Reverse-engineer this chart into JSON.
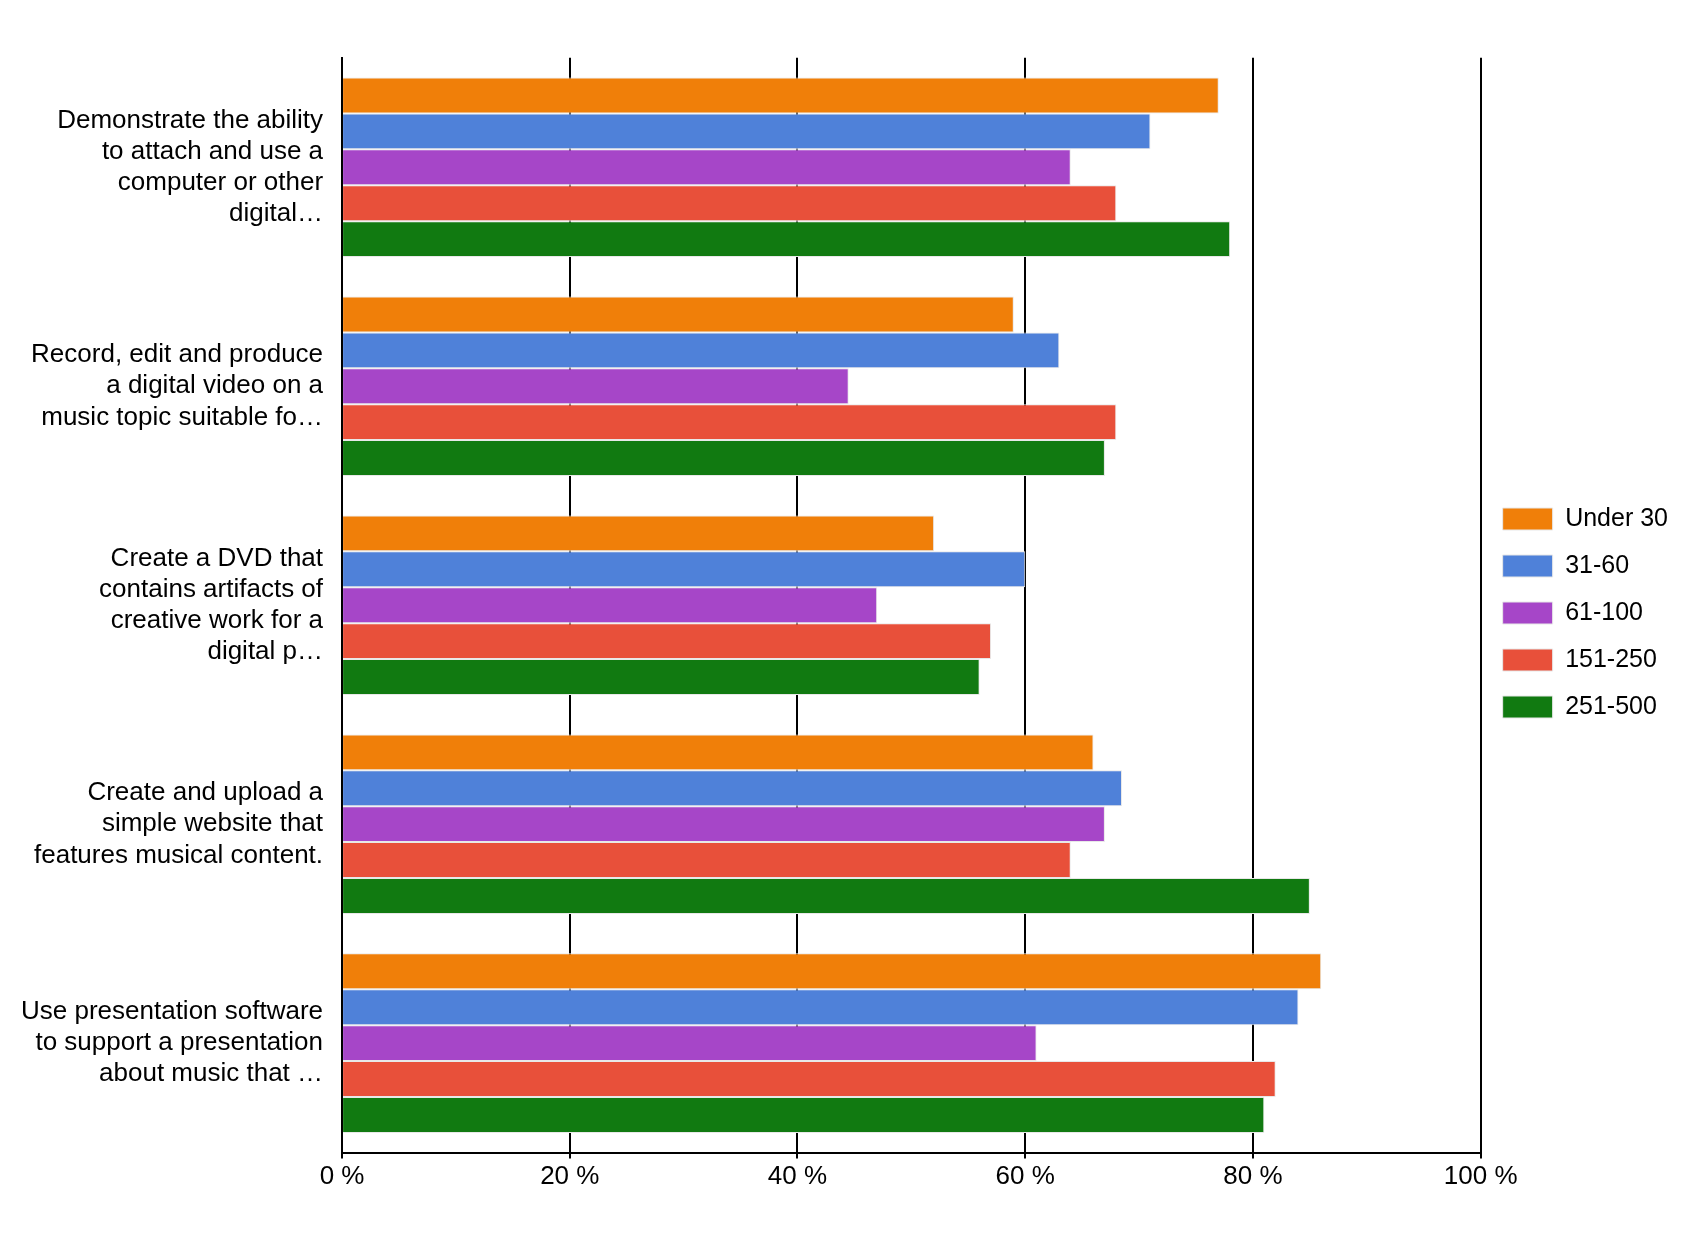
{
  "chart_data": {
    "type": "bar",
    "orientation": "horizontal",
    "categories": [
      "Demonstrate the ability to attach and use a computer or other digital…",
      "Record, edit and produce a digital video on a music topic suitable fo…",
      "Create a DVD that contains artifacts of creative work for a digital p…",
      "Create and upload a simple website that features musical content.",
      "Use presentation software to support a presentation about music that …"
    ],
    "series": [
      {
        "name": "Under 30",
        "color": "#f07f09",
        "values": [
          77,
          59,
          52,
          66,
          86
        ]
      },
      {
        "name": "31-60",
        "color": "#4f81d9",
        "values": [
          71,
          63,
          60,
          68.5,
          84
        ]
      },
      {
        "name": "61-100",
        "color": "#a646c8",
        "values": [
          64,
          44.5,
          47,
          67,
          61
        ]
      },
      {
        "name": "151-250",
        "color": "#e8503a",
        "values": [
          68,
          68,
          57,
          64,
          82
        ]
      },
      {
        "name": "251-500",
        "color": "#117a11",
        "values": [
          78,
          67,
          56,
          85,
          81
        ]
      }
    ],
    "xlim": [
      0,
      100
    ],
    "xticks": [
      {
        "value": 0,
        "label": "0 %"
      },
      {
        "value": 20,
        "label": "20 %"
      },
      {
        "value": 40,
        "label": "40 %"
      },
      {
        "value": 60,
        "label": "60 %"
      },
      {
        "value": 80,
        "label": "80 %"
      },
      {
        "value": 100,
        "label": "100 %"
      }
    ],
    "grid": "x",
    "legend": "right"
  }
}
